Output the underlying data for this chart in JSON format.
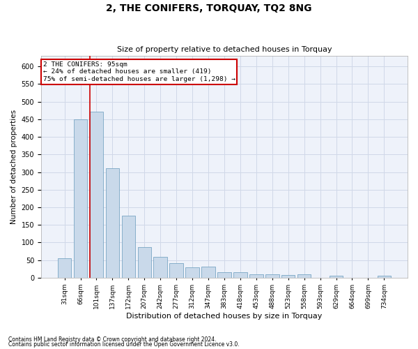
{
  "title": "2, THE CONIFERS, TORQUAY, TQ2 8NG",
  "subtitle": "Size of property relative to detached houses in Torquay",
  "xlabel": "Distribution of detached houses by size in Torquay",
  "ylabel": "Number of detached properties",
  "footnote1": "Contains HM Land Registry data © Crown copyright and database right 2024.",
  "footnote2": "Contains public sector information licensed under the Open Government Licence v3.0.",
  "annotation_title": "2 THE CONIFERS: 95sqm",
  "annotation_line1": "← 24% of detached houses are smaller (419)",
  "annotation_line2": "75% of semi-detached houses are larger (1,298) →",
  "bar_color": "#c9d9ea",
  "bar_edge_color": "#6699bb",
  "vline_color": "#cc0000",
  "annotation_box_color": "#cc0000",
  "grid_color": "#d0d8e8",
  "background_color": "#eef2fa",
  "categories": [
    "31sqm",
    "66sqm",
    "101sqm",
    "137sqm",
    "172sqm",
    "207sqm",
    "242sqm",
    "277sqm",
    "312sqm",
    "347sqm",
    "383sqm",
    "418sqm",
    "453sqm",
    "488sqm",
    "523sqm",
    "558sqm",
    "593sqm",
    "629sqm",
    "664sqm",
    "699sqm",
    "734sqm"
  ],
  "values": [
    55,
    450,
    472,
    311,
    176,
    88,
    59,
    42,
    30,
    31,
    15,
    15,
    10,
    10,
    7,
    10,
    0,
    5,
    0,
    0,
    5
  ],
  "vline_x_index": 1.57,
  "ylim": [
    0,
    630
  ],
  "yticks": [
    0,
    50,
    100,
    150,
    200,
    250,
    300,
    350,
    400,
    450,
    500,
    550,
    600
  ],
  "figsize": [
    6.0,
    5.0
  ],
  "dpi": 100
}
